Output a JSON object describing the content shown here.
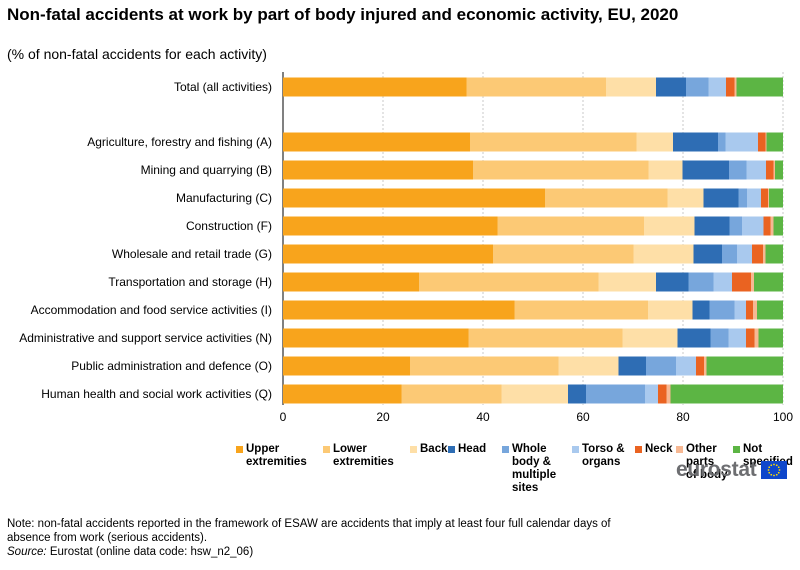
{
  "title": "Non-fatal accidents at work by part of body injured and economic activity, EU, 2020",
  "subtitle": "(% of non-fatal accidents for each activity)",
  "note": "Note: non-fatal accidents reported in the framework of ESAW are accidents that imply at least four full calendar days of absence from work (serious accidents).",
  "source": {
    "prefix": "Source:",
    "text": "Eurostat (online data code: hsw_n2_06)"
  },
  "logo": {
    "text": "eurostat"
  },
  "chart_data": {
    "type": "bar",
    "orientation": "horizontal",
    "stacked": true,
    "categories": [
      "Total (all activities)",
      "Agriculture, forestry and fishing (A)",
      "Mining and quarrying (B)",
      "Manufacturing (C)",
      "Construction (F)",
      "Wholesale and retail trade (G)",
      "Transportation and storage (H)",
      "Accommodation and food service activities (I)",
      "Administrative and support service activities (N)",
      "Public administration and defence (O)",
      "Human health and social work activities (Q)"
    ],
    "series": [
      {
        "name": "Upper extremities",
        "color": "#f8a41c",
        "values": [
          36.7,
          37.4,
          38.0,
          52.4,
          42.9,
          42.0,
          27.2,
          46.3,
          37.1,
          25.4,
          23.7
        ]
      },
      {
        "name": "Lower extremities",
        "color": "#fcc975",
        "values": [
          27.9,
          33.3,
          35.1,
          24.5,
          29.3,
          28.1,
          35.9,
          26.7,
          30.8,
          29.7,
          20.0
        ]
      },
      {
        "name": "Back",
        "color": "#fedfa7",
        "values": [
          10.0,
          7.3,
          6.8,
          7.2,
          10.1,
          12.0,
          11.5,
          8.9,
          11.0,
          12.0,
          13.3
        ]
      },
      {
        "name": "Head",
        "color": "#2e6db4",
        "values": [
          6.0,
          9.0,
          9.3,
          7.0,
          7.0,
          5.7,
          6.5,
          3.4,
          6.6,
          5.5,
          3.6
        ]
      },
      {
        "name": "Whole body & multiple sites",
        "color": "#77a6dc",
        "values": [
          4.5,
          1.5,
          3.5,
          1.7,
          2.5,
          3.0,
          5.0,
          5.0,
          3.6,
          6.0,
          11.8
        ]
      },
      {
        "name": "Torso & organs",
        "color": "#a9c9ee",
        "values": [
          3.5,
          6.5,
          3.9,
          2.8,
          4.3,
          3.0,
          3.7,
          2.3,
          3.5,
          4.0,
          2.6
        ]
      },
      {
        "name": "Neck",
        "color": "#ea6321",
        "values": [
          1.7,
          1.5,
          1.5,
          1.4,
          1.4,
          2.2,
          3.8,
          1.4,
          1.7,
          1.6,
          1.7
        ]
      },
      {
        "name": "Other parts of body",
        "color": "#f7b893",
        "values": [
          0.4,
          0.2,
          0.3,
          0.2,
          0.6,
          0.5,
          0.6,
          0.8,
          0.8,
          0.5,
          0.8
        ]
      },
      {
        "name": "Not specified",
        "color": "#5cb544",
        "values": [
          9.3,
          3.3,
          1.6,
          2.8,
          1.9,
          3.5,
          5.8,
          5.2,
          4.9,
          15.3,
          22.5
        ]
      }
    ],
    "gap_after_index": 0,
    "xlim": [
      0,
      100
    ],
    "xticks": [
      0,
      20,
      40,
      60,
      80,
      100
    ],
    "grid": true,
    "legend_position": "bottom"
  },
  "legend_labels": [
    "Upper\nextremities",
    "Lower\nextremities",
    "Back",
    "Head",
    "Whole\nbody &\nmultiple\nsites",
    "Torso &\norgans",
    "Neck",
    "Other\nparts\nof body",
    "Not\nspecified"
  ]
}
